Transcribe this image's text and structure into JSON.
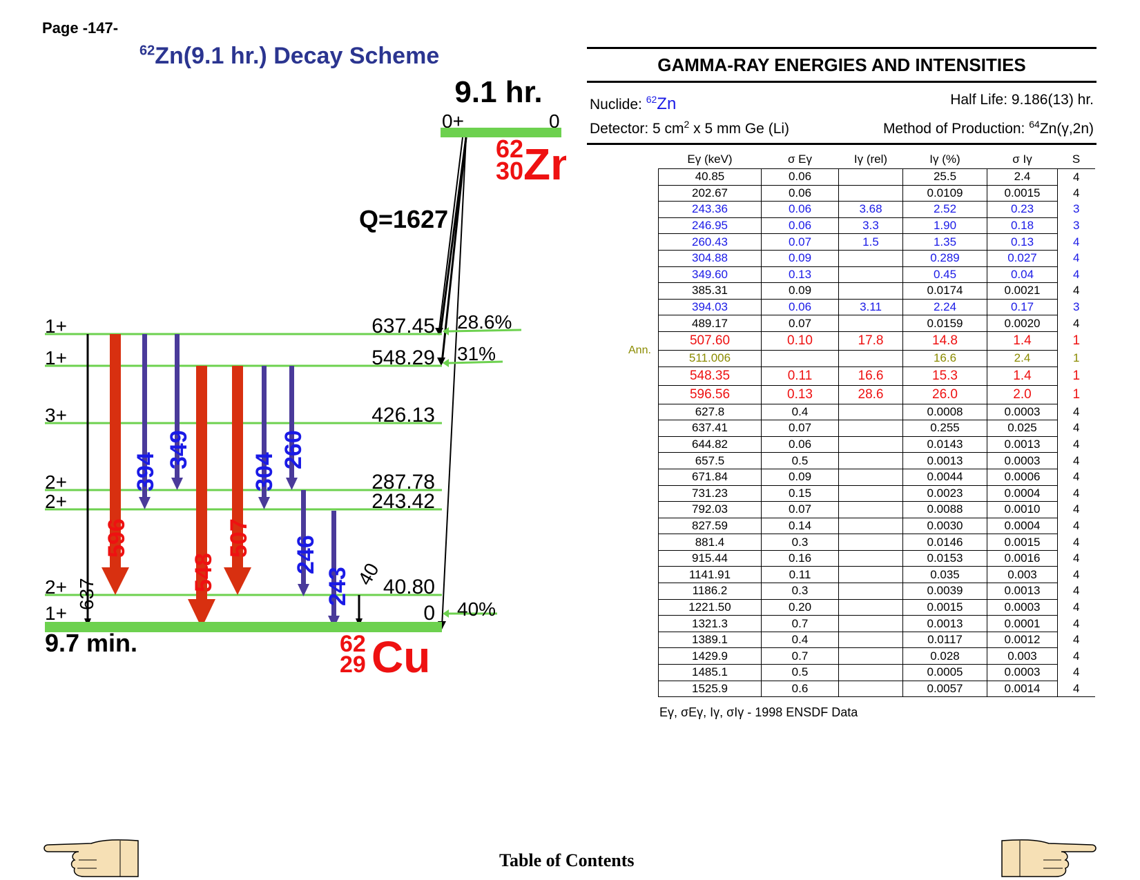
{
  "page_label": "Page -147-",
  "scheme_title": {
    "mass": "62",
    "element": "Zn",
    "halflife_paren": "(9.1 hr.)",
    "suffix": "Decay Scheme"
  },
  "parent": {
    "halflife": "9.1 hr.",
    "spin": "0+",
    "energy": "0",
    "mass": "62",
    "z": "30",
    "symbol": "Zn"
  },
  "q_value": "Q=1627",
  "daughter": {
    "halflife": "9.7 min.",
    "mass": "62",
    "z": "29",
    "symbol": "Cu"
  },
  "levels": [
    {
      "spin": "1+",
      "energy": "637.45",
      "feeding": "28.6%"
    },
    {
      "spin": "1+",
      "energy": "548.29",
      "feeding": "31%"
    },
    {
      "spin": "3+",
      "energy": "426.13",
      "feeding": ""
    },
    {
      "spin": "2+",
      "energy": "287.78",
      "feeding": ""
    },
    {
      "spin": "2+",
      "energy": "243.42",
      "feeding": ""
    },
    {
      "spin": "2+",
      "energy": "40.80",
      "feeding": ""
    },
    {
      "spin": "1+",
      "energy": "0",
      "feeding": "40%"
    }
  ],
  "gammas": [
    {
      "label": "637",
      "color": "#000000"
    },
    {
      "label": "596",
      "color": "#e0200c"
    },
    {
      "label": "394",
      "color": "#1a1ae6"
    },
    {
      "label": "349",
      "color": "#1a1ae6"
    },
    {
      "label": "548",
      "color": "#e0200c"
    },
    {
      "label": "507",
      "color": "#e0200c"
    },
    {
      "label": "304",
      "color": "#1a1ae6"
    },
    {
      "label": "260",
      "color": "#1a1ae6"
    },
    {
      "label": "246",
      "color": "#1a1ae6"
    },
    {
      "label": "243",
      "color": "#1a1ae6"
    },
    {
      "label": "40",
      "color": "#000000"
    }
  ],
  "colors": {
    "level_line": "#6dd14f",
    "arrow_purple": "#4a3a9a",
    "arrow_red": "#d83010",
    "text_red": "#ee1111",
    "text_blue": "#1a1ae6",
    "title_blue": "#2b3590"
  },
  "table": {
    "title": "GAMMA-RAY ENERGIES AND INTENSITIES",
    "nuclide_label": "Nuclide:",
    "nuclide_mass": "62",
    "nuclide_symbol": "Zn",
    "halflife_text": "Half Life: 9.186(13) hr.",
    "detector_text_a": "Detector: 5 cm",
    "detector_text_sup": "2",
    "detector_text_b": " x 5 mm Ge (Li)",
    "method_text_a": "Method of Production: ",
    "method_sup": "64",
    "method_text_b": "Zn(γ,2n)",
    "headers": [
      "Eγ (keV)",
      "σ Eγ",
      "Iγ (rel)",
      "Iγ (%)",
      "σ Iγ",
      "S"
    ],
    "ann_label": "Ann.",
    "rows": [
      {
        "e": "40.85",
        "se": "0.06",
        "irel": "",
        "ipct": "25.5",
        "si": "2.4",
        "s": "4",
        "color": "#000000"
      },
      {
        "e": "202.67",
        "se": "0.06",
        "irel": "",
        "ipct": "0.0109",
        "si": "0.0015",
        "s": "4",
        "color": "#000000"
      },
      {
        "e": "243.36",
        "se": "0.06",
        "irel": "3.68",
        "ipct": "2.52",
        "si": "0.23",
        "s": "3",
        "color": "#1a1ae6"
      },
      {
        "e": "246.95",
        "se": "0.06",
        "irel": "3.3",
        "ipct": "1.90",
        "si": "0.18",
        "s": "3",
        "color": "#1a1ae6"
      },
      {
        "e": "260.43",
        "se": "0.07",
        "irel": "1.5",
        "ipct": "1.35",
        "si": "0.13",
        "s": "4",
        "color": "#1a1ae6"
      },
      {
        "e": "304.88",
        "se": "0.09",
        "irel": "",
        "ipct": "0.289",
        "si": "0.027",
        "s": "4",
        "color": "#1a1ae6"
      },
      {
        "e": "349.60",
        "se": "0.13",
        "irel": "",
        "ipct": "0.45",
        "si": "0.04",
        "s": "4",
        "color": "#1a1ae6"
      },
      {
        "e": "385.31",
        "se": "0.09",
        "irel": "",
        "ipct": "0.0174",
        "si": "0.0021",
        "s": "4",
        "color": "#000000"
      },
      {
        "e": "394.03",
        "se": "0.06",
        "irel": "3.11",
        "ipct": "2.24",
        "si": "0.17",
        "s": "3",
        "color": "#1a1ae6"
      },
      {
        "e": "489.17",
        "se": "0.07",
        "irel": "",
        "ipct": "0.0159",
        "si": "0.0020",
        "s": "4",
        "color": "#000000"
      },
      {
        "e": "507.60",
        "se": "0.10",
        "irel": "17.8",
        "ipct": "14.8",
        "si": "1.4",
        "s": "1",
        "color": "#ee1111",
        "big": true
      },
      {
        "e": "511.006",
        "se": "",
        "irel": "",
        "ipct": "16.6",
        "si": "2.4",
        "s": "1",
        "color": "#8b8b00",
        "ann": true
      },
      {
        "e": "548.35",
        "se": "0.11",
        "irel": "16.6",
        "ipct": "15.3",
        "si": "1.4",
        "s": "1",
        "color": "#ee1111",
        "big": true
      },
      {
        "e": "596.56",
        "se": "0.13",
        "irel": "28.6",
        "ipct": "26.0",
        "si": "2.0",
        "s": "1",
        "color": "#ee1111",
        "big": true
      },
      {
        "e": "627.8",
        "se": "0.4",
        "irel": "",
        "ipct": "0.0008",
        "si": "0.0003",
        "s": "4",
        "color": "#000000"
      },
      {
        "e": "637.41",
        "se": "0.07",
        "irel": "",
        "ipct": "0.255",
        "si": "0.025",
        "s": "4",
        "color": "#000000"
      },
      {
        "e": "644.82",
        "se": "0.06",
        "irel": "",
        "ipct": "0.0143",
        "si": "0.0013",
        "s": "4",
        "color": "#000000"
      },
      {
        "e": "657.5",
        "se": "0.5",
        "irel": "",
        "ipct": "0.0013",
        "si": "0.0003",
        "s": "4",
        "color": "#000000"
      },
      {
        "e": "671.84",
        "se": "0.09",
        "irel": "",
        "ipct": "0.0044",
        "si": "0.0006",
        "s": "4",
        "color": "#000000"
      },
      {
        "e": "731.23",
        "se": "0.15",
        "irel": "",
        "ipct": "0.0023",
        "si": "0.0004",
        "s": "4",
        "color": "#000000"
      },
      {
        "e": "792.03",
        "se": "0.07",
        "irel": "",
        "ipct": "0.0088",
        "si": "0.0010",
        "s": "4",
        "color": "#000000"
      },
      {
        "e": "827.59",
        "se": "0.14",
        "irel": "",
        "ipct": "0.0030",
        "si": "0.0004",
        "s": "4",
        "color": "#000000"
      },
      {
        "e": "881.4",
        "se": "0.3",
        "irel": "",
        "ipct": "0.0146",
        "si": "0.0015",
        "s": "4",
        "color": "#000000"
      },
      {
        "e": "915.44",
        "se": "0.16",
        "irel": "",
        "ipct": "0.0153",
        "si": "0.0016",
        "s": "4",
        "color": "#000000"
      },
      {
        "e": "1141.91",
        "se": "0.11",
        "irel": "",
        "ipct": "0.035",
        "si": "0.003",
        "s": "4",
        "color": "#000000"
      },
      {
        "e": "1186.2",
        "se": "0.3",
        "irel": "",
        "ipct": "0.0039",
        "si": "0.0013",
        "s": "4",
        "color": "#000000"
      },
      {
        "e": "1221.50",
        "se": "0.20",
        "irel": "",
        "ipct": "0.0015",
        "si": "0.0003",
        "s": "4",
        "color": "#000000"
      },
      {
        "e": "1321.3",
        "se": "0.7",
        "irel": "",
        "ipct": "0.0013",
        "si": "0.0001",
        "s": "4",
        "color": "#000000"
      },
      {
        "e": "1389.1",
        "se": "0.4",
        "irel": "",
        "ipct": "0.0117",
        "si": "0.0012",
        "s": "4",
        "color": "#000000"
      },
      {
        "e": "1429.9",
        "se": "0.7",
        "irel": "",
        "ipct": "0.028",
        "si": "0.003",
        "s": "4",
        "color": "#000000"
      },
      {
        "e": "1485.1",
        "se": "0.5",
        "irel": "",
        "ipct": "0.0005",
        "si": "0.0003",
        "s": "4",
        "color": "#000000"
      },
      {
        "e": "1525.9",
        "se": "0.6",
        "irel": "",
        "ipct": "0.0057",
        "si": "0.0014",
        "s": "4",
        "color": "#000000"
      }
    ],
    "footnote_symbols": "Eγ, σEγ, Iγ, σIγ -",
    "footnote_text": "1998 ENSDF Data"
  },
  "toc_link": "Table of Contents",
  "nav": {
    "prev_icon": "pointing-hand-left-icon",
    "next_icon": "pointing-hand-right-icon"
  }
}
